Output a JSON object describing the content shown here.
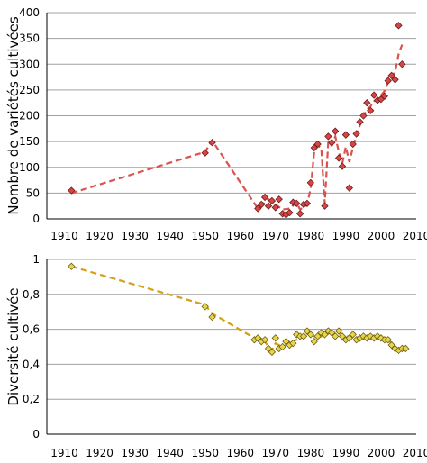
{
  "chart_data": [
    {
      "type": "scatter",
      "ylabel": "Nombre de variétés cultivées",
      "xlim": [
        1905,
        2010
      ],
      "ylim": [
        0,
        400
      ],
      "xticks": [
        "1910",
        "1920",
        "1930",
        "1940",
        "1950",
        "1960",
        "1970",
        "1980",
        "1990",
        "2000",
        "2010"
      ],
      "yticks": [
        "0",
        "50",
        "100",
        "150",
        "200",
        "250",
        "300",
        "350",
        "400"
      ],
      "grid": "horizontal",
      "colors": {
        "marker": "#d94545",
        "marker_stroke": "#6b1a1a",
        "trend": "#d9534f"
      },
      "series": [
        {
          "points": [
            [
              1912,
              55
            ],
            [
              1950,
              128
            ],
            [
              1952,
              148
            ],
            [
              1965,
              20
            ],
            [
              1966,
              28
            ],
            [
              1967,
              42
            ],
            [
              1968,
              25
            ],
            [
              1969,
              35
            ],
            [
              1970,
              22
            ],
            [
              1971,
              38
            ],
            [
              1972,
              10
            ],
            [
              1973,
              8
            ],
            [
              1974,
              12
            ],
            [
              1975,
              32
            ],
            [
              1976,
              30
            ],
            [
              1977,
              10
            ],
            [
              1978,
              28
            ],
            [
              1979,
              30
            ],
            [
              1980,
              70
            ],
            [
              1981,
              138
            ],
            [
              1982,
              145
            ],
            [
              1984,
              25
            ],
            [
              1985,
              160
            ],
            [
              1986,
              148
            ],
            [
              1987,
              170
            ],
            [
              1988,
              118
            ],
            [
              1989,
              102
            ],
            [
              1990,
              163
            ],
            [
              1991,
              60
            ],
            [
              1992,
              145
            ],
            [
              1993,
              165
            ],
            [
              1994,
              188
            ],
            [
              1995,
              200
            ],
            [
              1996,
              225
            ],
            [
              1997,
              210
            ],
            [
              1998,
              240
            ],
            [
              1999,
              230
            ],
            [
              2000,
              232
            ],
            [
              2001,
              238
            ],
            [
              2002,
              268
            ],
            [
              2003,
              278
            ],
            [
              2004,
              270
            ],
            [
              2005,
              375
            ],
            [
              2006,
              300
            ]
          ],
          "trend": [
            [
              1912,
              50
            ],
            [
              1950,
              130
            ],
            [
              1952,
              152
            ],
            [
              1965,
              20
            ],
            [
              1968,
              38
            ],
            [
              1970,
              28
            ],
            [
              1972,
              18
            ],
            [
              1974,
              20
            ],
            [
              1976,
              32
            ],
            [
              1977,
              18
            ],
            [
              1979,
              28
            ],
            [
              1980,
              60
            ],
            [
              1981,
              130
            ],
            [
              1982,
              142
            ],
            [
              1983,
              138
            ],
            [
              1984,
              30
            ],
            [
              1985,
              150
            ],
            [
              1986,
              142
            ],
            [
              1987,
              160
            ],
            [
              1988,
              130
            ],
            [
              1989,
              108
            ],
            [
              1990,
              140
            ],
            [
              1991,
              110
            ],
            [
              1992,
              138
            ],
            [
              1993,
              160
            ],
            [
              1994,
              182
            ],
            [
              1995,
              198
            ],
            [
              1996,
              212
            ],
            [
              1997,
              218
            ],
            [
              1998,
              228
            ],
            [
              1999,
              232
            ],
            [
              2000,
              240
            ],
            [
              2001,
              248
            ],
            [
              2002,
              265
            ],
            [
              2003,
              275
            ],
            [
              2004,
              285
            ],
            [
              2005,
              320
            ],
            [
              2006,
              338
            ]
          ]
        }
      ]
    },
    {
      "type": "scatter",
      "ylabel": "Diversité cultivée",
      "xlim": [
        1905,
        2010
      ],
      "ylim": [
        0,
        1
      ],
      "xticks": [
        "1910",
        "1920",
        "1930",
        "1940",
        "1950",
        "1960",
        "1970",
        "1980",
        "1990",
        "2000",
        "2010"
      ],
      "yticks": [
        "0",
        "0,2",
        "0,4",
        "0,6",
        "0,8",
        "1"
      ],
      "grid": "horizontal",
      "colors": {
        "marker": "#e8d44d",
        "marker_stroke": "#6b5e10",
        "trend": "#d4a017"
      },
      "series": [
        {
          "points": [
            [
              1912,
              0.96
            ],
            [
              1950,
              0.73
            ],
            [
              1952,
              0.67
            ],
            [
              1964,
              0.54
            ],
            [
              1965,
              0.55
            ],
            [
              1966,
              0.53
            ],
            [
              1967,
              0.54
            ],
            [
              1968,
              0.49
            ],
            [
              1969,
              0.47
            ],
            [
              1970,
              0.55
            ],
            [
              1971,
              0.49
            ],
            [
              1972,
              0.5
            ],
            [
              1973,
              0.53
            ],
            [
              1974,
              0.51
            ],
            [
              1975,
              0.52
            ],
            [
              1976,
              0.57
            ],
            [
              1977,
              0.56
            ],
            [
              1978,
              0.56
            ],
            [
              1979,
              0.59
            ],
            [
              1980,
              0.57
            ],
            [
              1981,
              0.53
            ],
            [
              1982,
              0.56
            ],
            [
              1983,
              0.58
            ],
            [
              1984,
              0.57
            ],
            [
              1985,
              0.59
            ],
            [
              1986,
              0.58
            ],
            [
              1987,
              0.56
            ],
            [
              1988,
              0.59
            ],
            [
              1989,
              0.56
            ],
            [
              1990,
              0.54
            ],
            [
              1991,
              0.55
            ],
            [
              1992,
              0.57
            ],
            [
              1993,
              0.54
            ],
            [
              1994,
              0.55
            ],
            [
              1995,
              0.56
            ],
            [
              1996,
              0.55
            ],
            [
              1997,
              0.56
            ],
            [
              1998,
              0.55
            ],
            [
              1999,
              0.56
            ],
            [
              2000,
              0.55
            ],
            [
              2001,
              0.54
            ],
            [
              2002,
              0.54
            ],
            [
              2003,
              0.51
            ],
            [
              2004,
              0.49
            ],
            [
              2005,
              0.48
            ],
            [
              2006,
              0.49
            ],
            [
              2007,
              0.49
            ]
          ],
          "trend": [
            [
              1912,
              0.96
            ],
            [
              1950,
              0.74
            ],
            [
              1952,
              0.69
            ],
            [
              1964,
              0.55
            ],
            [
              1966,
              0.54
            ],
            [
              1967,
              0.53
            ],
            [
              1968,
              0.5
            ],
            [
              1969,
              0.48
            ],
            [
              1970,
              0.52
            ],
            [
              1971,
              0.51
            ],
            [
              1972,
              0.5
            ],
            [
              1974,
              0.52
            ],
            [
              1976,
              0.54
            ],
            [
              1978,
              0.56
            ],
            [
              1980,
              0.57
            ],
            [
              1982,
              0.55
            ],
            [
              1984,
              0.57
            ],
            [
              1986,
              0.58
            ],
            [
              1988,
              0.58
            ],
            [
              1990,
              0.56
            ],
            [
              1992,
              0.56
            ],
            [
              1994,
              0.55
            ],
            [
              1996,
              0.555
            ],
            [
              1998,
              0.555
            ],
            [
              2000,
              0.55
            ],
            [
              2002,
              0.54
            ],
            [
              2003,
              0.52
            ],
            [
              2004,
              0.5
            ],
            [
              2005,
              0.48
            ],
            [
              2006,
              0.48
            ],
            [
              2007,
              0.49
            ]
          ]
        }
      ]
    }
  ]
}
